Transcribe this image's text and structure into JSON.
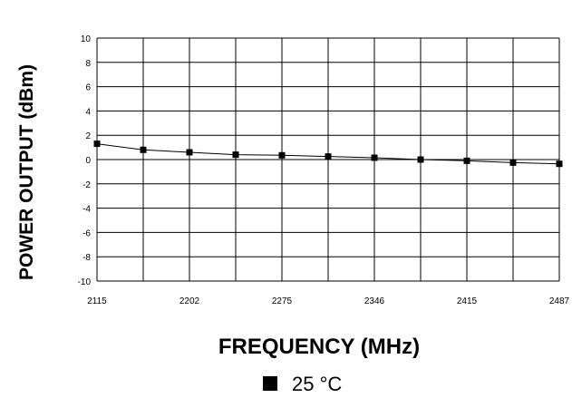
{
  "chart_data": {
    "type": "line",
    "xlabel": "FREQUENCY (MHz)",
    "ylabel": "POWER OUTPUT (dBm)",
    "x_tick_labels": [
      "2115",
      "2202",
      "2275",
      "2346",
      "2415",
      "2487"
    ],
    "y_ticks": [
      10,
      8,
      6,
      4,
      2,
      0,
      -2,
      -4,
      -6,
      -8,
      -10
    ],
    "y_tick_labels": [
      "10",
      "8",
      "6",
      "4",
      "2",
      "0",
      "-2",
      "-4",
      "-6",
      "-8",
      "-10"
    ],
    "ylim": [
      -10,
      10
    ],
    "grid": true,
    "legend_position": "bottom-center",
    "series": [
      {
        "name": "25 °C",
        "marker": "square",
        "color": "#000000",
        "x": [
          "2115",
          "",
          "2202",
          "",
          "2275",
          "",
          "2346",
          "",
          "2415",
          "",
          "2487"
        ],
        "values": [
          1.3,
          0.8,
          0.6,
          0.4,
          0.35,
          0.25,
          0.15,
          0.0,
          -0.1,
          -0.25,
          -0.35
        ]
      }
    ]
  }
}
